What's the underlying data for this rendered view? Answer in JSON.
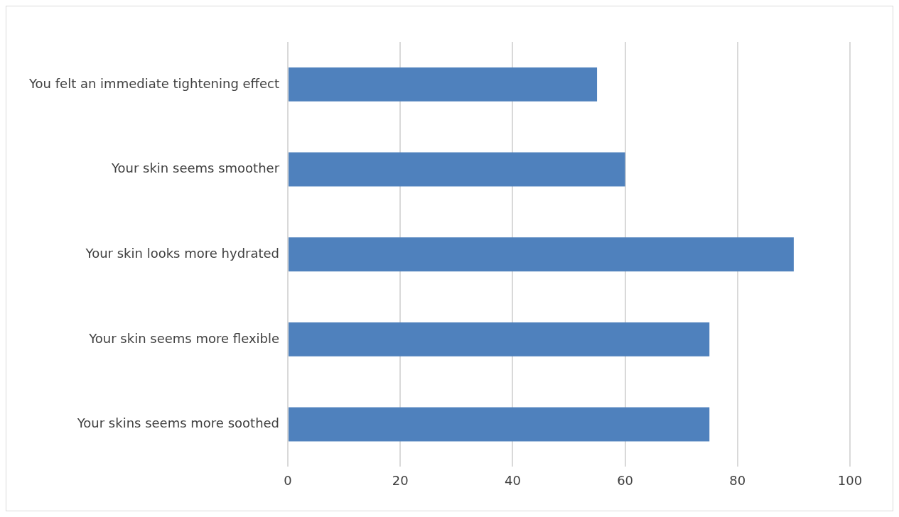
{
  "chart_data": {
    "type": "bar",
    "orientation": "horizontal",
    "categories": [
      "You felt an immediate tightening effect",
      "Your skin seems smoother",
      "Your skin looks more hydrated",
      "Your skin seems more flexible",
      "Your skins seems more soothed"
    ],
    "series": [
      {
        "color": "#4f81bd",
        "values": [
          55,
          60,
          90,
          75,
          75
        ]
      }
    ],
    "xlim": [
      0,
      100
    ],
    "xticks": [
      0,
      20,
      40,
      60,
      80,
      100
    ],
    "grid": "x",
    "legend": false
  }
}
